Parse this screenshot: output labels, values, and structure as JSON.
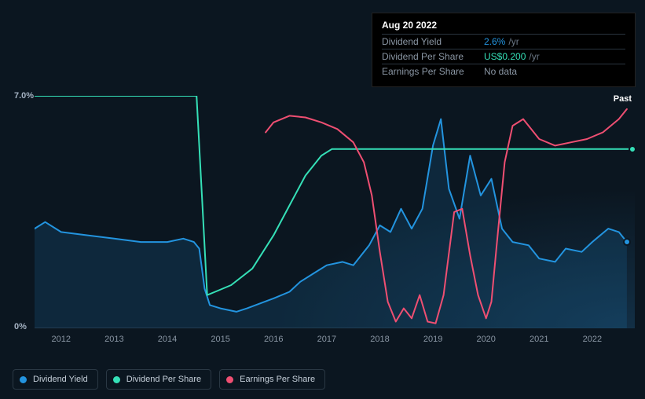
{
  "tooltip": {
    "title": "Aug 20 2022",
    "rows": [
      {
        "label": "Dividend Yield",
        "value": "2.6%",
        "suffix": "/yr",
        "valueColor": "#2394df"
      },
      {
        "label": "Dividend Per Share",
        "value": "US$0.200",
        "suffix": "/yr",
        "valueColor": "#35e0b7"
      },
      {
        "label": "Earnings Per Share",
        "value": "No data",
        "suffix": "",
        "valueColor": "#8a96a4"
      }
    ]
  },
  "chart": {
    "type": "line",
    "background": "#0b1620",
    "yAxis": {
      "min": 0,
      "max": 7,
      "labels": [
        "7.0%",
        "0%"
      ]
    },
    "xAxis": {
      "min": 2011.5,
      "max": 2022.8,
      "ticks": [
        2012,
        2013,
        2014,
        2015,
        2016,
        2017,
        2018,
        2019,
        2020,
        2021,
        2022
      ]
    },
    "pastLabel": "Past",
    "grid_color": "#1a2430",
    "series": [
      {
        "name": "Dividend Yield",
        "color": "#2394df",
        "fill": true,
        "fillOpacity": 0.15,
        "lineWidth": 2,
        "marker": {
          "x": 2022.65,
          "y": 2.6
        },
        "data": [
          [
            2011.5,
            3.0
          ],
          [
            2011.7,
            3.2
          ],
          [
            2012.0,
            2.9
          ],
          [
            2012.5,
            2.8
          ],
          [
            2013.0,
            2.7
          ],
          [
            2013.5,
            2.6
          ],
          [
            2014.0,
            2.6
          ],
          [
            2014.3,
            2.7
          ],
          [
            2014.5,
            2.6
          ],
          [
            2014.6,
            2.4
          ],
          [
            2014.7,
            1.2
          ],
          [
            2014.8,
            0.7
          ],
          [
            2015.0,
            0.6
          ],
          [
            2015.3,
            0.5
          ],
          [
            2015.5,
            0.6
          ],
          [
            2016.0,
            0.9
          ],
          [
            2016.3,
            1.1
          ],
          [
            2016.5,
            1.4
          ],
          [
            2016.8,
            1.7
          ],
          [
            2017.0,
            1.9
          ],
          [
            2017.3,
            2.0
          ],
          [
            2017.5,
            1.9
          ],
          [
            2017.8,
            2.5
          ],
          [
            2018.0,
            3.1
          ],
          [
            2018.2,
            2.9
          ],
          [
            2018.4,
            3.6
          ],
          [
            2018.6,
            3.0
          ],
          [
            2018.8,
            3.6
          ],
          [
            2019.0,
            5.5
          ],
          [
            2019.15,
            6.3
          ],
          [
            2019.3,
            4.2
          ],
          [
            2019.5,
            3.3
          ],
          [
            2019.7,
            5.2
          ],
          [
            2019.9,
            4.0
          ],
          [
            2020.1,
            4.5
          ],
          [
            2020.3,
            3.0
          ],
          [
            2020.5,
            2.6
          ],
          [
            2020.8,
            2.5
          ],
          [
            2021.0,
            2.1
          ],
          [
            2021.3,
            2.0
          ],
          [
            2021.5,
            2.4
          ],
          [
            2021.8,
            2.3
          ],
          [
            2022.0,
            2.6
          ],
          [
            2022.3,
            3.0
          ],
          [
            2022.5,
            2.9
          ],
          [
            2022.65,
            2.6
          ]
        ]
      },
      {
        "name": "Dividend Per Share",
        "color": "#35e0b7",
        "fill": false,
        "lineWidth": 2,
        "marker": {
          "x": 2022.75,
          "y": 5.4
        },
        "data": [
          [
            2011.5,
            7.0
          ],
          [
            2014.55,
            7.0
          ],
          [
            2014.65,
            4.0
          ],
          [
            2014.75,
            1.0
          ],
          [
            2014.9,
            1.1
          ],
          [
            2015.2,
            1.3
          ],
          [
            2015.6,
            1.8
          ],
          [
            2016.0,
            2.8
          ],
          [
            2016.3,
            3.7
          ],
          [
            2016.6,
            4.6
          ],
          [
            2016.9,
            5.2
          ],
          [
            2017.1,
            5.4
          ],
          [
            2022.8,
            5.4
          ]
        ]
      },
      {
        "name": "Earnings Per Share",
        "color": "#ef4f72",
        "fill": false,
        "lineWidth": 2,
        "data": [
          [
            2015.85,
            5.9
          ],
          [
            2016.0,
            6.2
          ],
          [
            2016.3,
            6.4
          ],
          [
            2016.6,
            6.35
          ],
          [
            2016.9,
            6.2
          ],
          [
            2017.2,
            6.0
          ],
          [
            2017.5,
            5.6
          ],
          [
            2017.7,
            5.0
          ],
          [
            2017.85,
            4.0
          ],
          [
            2018.0,
            2.3
          ],
          [
            2018.15,
            0.8
          ],
          [
            2018.3,
            0.2
          ],
          [
            2018.45,
            0.6
          ],
          [
            2018.6,
            0.3
          ],
          [
            2018.75,
            1.0
          ],
          [
            2018.9,
            0.2
          ],
          [
            2019.05,
            0.15
          ],
          [
            2019.2,
            1.0
          ],
          [
            2019.4,
            3.5
          ],
          [
            2019.55,
            3.6
          ],
          [
            2019.7,
            2.2
          ],
          [
            2019.85,
            1.0
          ],
          [
            2020.0,
            0.3
          ],
          [
            2020.1,
            0.8
          ],
          [
            2020.2,
            2.5
          ],
          [
            2020.35,
            5.0
          ],
          [
            2020.5,
            6.1
          ],
          [
            2020.7,
            6.3
          ],
          [
            2021.0,
            5.7
          ],
          [
            2021.3,
            5.5
          ],
          [
            2021.6,
            5.6
          ],
          [
            2021.9,
            5.7
          ],
          [
            2022.2,
            5.9
          ],
          [
            2022.5,
            6.3
          ],
          [
            2022.65,
            6.6
          ]
        ]
      }
    ]
  },
  "legend": {
    "items": [
      {
        "label": "Dividend Yield",
        "color": "#2394df"
      },
      {
        "label": "Dividend Per Share",
        "color": "#35e0b7"
      },
      {
        "label": "Earnings Per Share",
        "color": "#ef4f72"
      }
    ]
  }
}
